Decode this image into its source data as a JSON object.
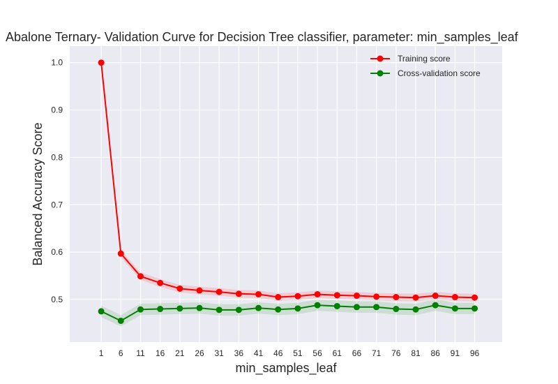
{
  "chart_data": {
    "type": "line",
    "title": "Abalone Ternary- Validation Curve for Decision Tree classifier, parameter: min_samples_leaf",
    "xlabel": "min_samples_leaf",
    "ylabel": "Balanced Accuracy Score",
    "x": [
      1,
      6,
      11,
      16,
      21,
      26,
      31,
      36,
      41,
      46,
      51,
      56,
      61,
      66,
      71,
      76,
      81,
      86,
      91,
      96
    ],
    "xlim": [
      -7,
      103
    ],
    "ylim": [
      0.41,
      1.035
    ],
    "yticks": [
      0.5,
      0.6,
      0.7,
      0.8,
      0.9,
      1.0
    ],
    "ytick_labels": [
      "0.5",
      "0.6",
      "0.7",
      "0.8",
      "0.9",
      "1.0"
    ],
    "grid": true,
    "legend_position": "top-right",
    "series": [
      {
        "name": "Training score",
        "color": "#ff0000",
        "values": [
          1.0,
          0.597,
          0.549,
          0.535,
          0.523,
          0.519,
          0.516,
          0.512,
          0.511,
          0.505,
          0.507,
          0.511,
          0.509,
          0.508,
          0.506,
          0.505,
          0.504,
          0.508,
          0.505,
          0.504
        ],
        "band": 0.008
      },
      {
        "name": "Cross-validation score",
        "color": "#008000",
        "values": [
          0.475,
          0.455,
          0.479,
          0.48,
          0.481,
          0.482,
          0.478,
          0.478,
          0.482,
          0.479,
          0.481,
          0.488,
          0.486,
          0.484,
          0.484,
          0.48,
          0.479,
          0.488,
          0.481,
          0.481
        ],
        "band": 0.012
      }
    ]
  }
}
